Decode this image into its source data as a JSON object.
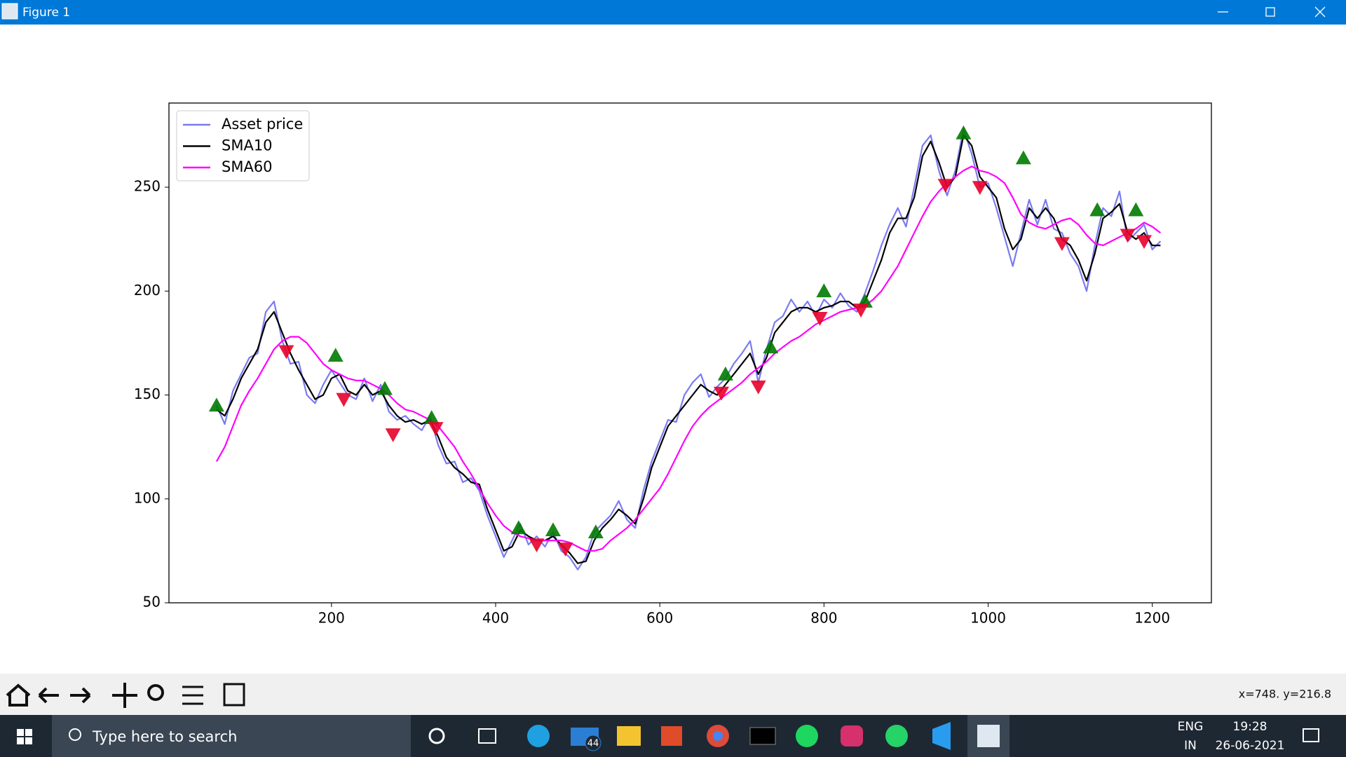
{
  "window": {
    "title": "Figure 1"
  },
  "toolbar": {
    "coords": "x=748. y=216.8"
  },
  "taskbar": {
    "search": "Type here to search",
    "mail_badge": "44",
    "language": "ENG",
    "region": "IN",
    "time": "19:28",
    "date": "26-06-2021"
  },
  "chart_data": {
    "type": "line",
    "x": [
      60,
      70,
      80,
      90,
      100,
      110,
      120,
      130,
      140,
      150,
      160,
      170,
      180,
      190,
      200,
      210,
      220,
      230,
      240,
      250,
      260,
      270,
      280,
      290,
      300,
      310,
      320,
      330,
      340,
      350,
      360,
      370,
      380,
      390,
      400,
      410,
      420,
      430,
      440,
      450,
      460,
      470,
      480,
      490,
      500,
      510,
      520,
      530,
      540,
      550,
      560,
      570,
      580,
      590,
      600,
      610,
      620,
      630,
      640,
      650,
      660,
      670,
      680,
      690,
      700,
      710,
      720,
      730,
      740,
      750,
      760,
      770,
      780,
      790,
      800,
      810,
      820,
      830,
      840,
      850,
      860,
      870,
      880,
      890,
      900,
      910,
      920,
      930,
      940,
      950,
      960,
      970,
      980,
      990,
      1000,
      1010,
      1020,
      1030,
      1040,
      1050,
      1060,
      1070,
      1080,
      1090,
      1100,
      1110,
      1120,
      1130,
      1140,
      1150,
      1160,
      1170,
      1180,
      1190,
      1200,
      1210
    ],
    "series": [
      {
        "name": "Asset price",
        "color": "#7b7bf2",
        "values": [
          145,
          136,
          152,
          160,
          168,
          170,
          190,
          195,
          176,
          165,
          166,
          150,
          146,
          155,
          162,
          156,
          150,
          148,
          158,
          147,
          155,
          142,
          138,
          140,
          136,
          133,
          140,
          126,
          117,
          118,
          108,
          110,
          104,
          92,
          82,
          72,
          80,
          88,
          78,
          82,
          77,
          84,
          75,
          72,
          66,
          72,
          84,
          88,
          92,
          99,
          90,
          86,
          104,
          118,
          128,
          138,
          137,
          150,
          156,
          160,
          149,
          154,
          158,
          165,
          170,
          176,
          156,
          172,
          185,
          188,
          196,
          190,
          195,
          188,
          196,
          192,
          199,
          193,
          190,
          199,
          210,
          222,
          232,
          240,
          231,
          250,
          270,
          275,
          258,
          246,
          258,
          278,
          266,
          250,
          252,
          240,
          226,
          212,
          228,
          244,
          232,
          244,
          230,
          228,
          218,
          212,
          200,
          222,
          240,
          236,
          248,
          224,
          228,
          232,
          220,
          224
        ]
      },
      {
        "name": "SMA10",
        "color": "#000000",
        "values": [
          143,
          140,
          148,
          158,
          165,
          172,
          185,
          190,
          180,
          170,
          162,
          155,
          148,
          150,
          158,
          160,
          152,
          150,
          155,
          150,
          152,
          145,
          140,
          137,
          138,
          136,
          138,
          130,
          120,
          115,
          112,
          108,
          107,
          95,
          85,
          75,
          77,
          85,
          82,
          80,
          80,
          82,
          78,
          74,
          69,
          70,
          80,
          86,
          90,
          95,
          92,
          88,
          100,
          115,
          125,
          135,
          140,
          145,
          150,
          155,
          152,
          150,
          155,
          160,
          165,
          170,
          160,
          168,
          180,
          185,
          190,
          192,
          192,
          190,
          192,
          193,
          195,
          195,
          192,
          195,
          205,
          215,
          228,
          235,
          235,
          245,
          265,
          272,
          262,
          250,
          255,
          275,
          270,
          255,
          250,
          245,
          230,
          220,
          225,
          240,
          235,
          240,
          235,
          225,
          222,
          215,
          205,
          218,
          235,
          238,
          242,
          228,
          225,
          228,
          222,
          222
        ]
      },
      {
        "name": "SMA60",
        "color": "#ff00ff",
        "values": [
          118,
          125,
          135,
          145,
          152,
          158,
          165,
          172,
          176,
          178,
          178,
          175,
          170,
          165,
          162,
          160,
          158,
          157,
          157,
          155,
          153,
          150,
          146,
          143,
          142,
          140,
          138,
          135,
          130,
          125,
          118,
          112,
          105,
          98,
          92,
          87,
          84,
          82,
          81,
          80,
          80,
          80,
          80,
          79,
          77,
          75,
          75,
          76,
          80,
          83,
          86,
          90,
          95,
          100,
          105,
          112,
          120,
          128,
          135,
          140,
          144,
          147,
          150,
          153,
          156,
          160,
          163,
          166,
          170,
          173,
          176,
          178,
          181,
          184,
          186,
          188,
          190,
          191,
          192,
          193,
          196,
          200,
          206,
          212,
          220,
          228,
          236,
          243,
          248,
          252,
          255,
          258,
          260,
          258,
          257,
          255,
          252,
          245,
          237,
          233,
          231,
          230,
          232,
          234,
          235,
          232,
          227,
          223,
          222,
          224,
          226,
          228,
          230,
          233,
          231,
          228
        ]
      }
    ],
    "buy_signals": {
      "color": "#007a00",
      "x": [
        60,
        205,
        265,
        322,
        428,
        470,
        522,
        680,
        735,
        800,
        850,
        970,
        1043,
        1133,
        1180
      ],
      "y": [
        145,
        169,
        153,
        139,
        86,
        85,
        84,
        160,
        173,
        200,
        195,
        276,
        264,
        239,
        239
      ]
    },
    "sell_signals": {
      "color": "#e8002a",
      "x": [
        145,
        215,
        275,
        327,
        450,
        485,
        675,
        720,
        795,
        845,
        948,
        990,
        1090,
        1170,
        1190
      ],
      "y": [
        171,
        148,
        131,
        134,
        78,
        76,
        151,
        154,
        187,
        191,
        251,
        250,
        223,
        227,
        224
      ]
    },
    "xlim": [
      2,
      1272
    ],
    "ylim": [
      50,
      290.5
    ],
    "xticks": [
      200,
      400,
      600,
      800,
      1000,
      1200
    ],
    "yticks": [
      50,
      100,
      150,
      200,
      250
    ],
    "legend": "upper left"
  }
}
